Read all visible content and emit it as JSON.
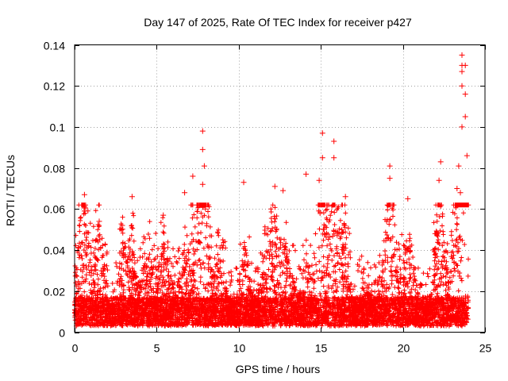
{
  "chart_data": {
    "type": "scatter",
    "title": "Day 147 of 2025, Rate Of TEC Index for receiver p427",
    "xlabel": "GPS time / hours",
    "ylabel": "ROTI / TECUs",
    "xlim": [
      0,
      25
    ],
    "ylim": [
      0,
      0.14
    ],
    "x_ticks": [
      0,
      5,
      10,
      15,
      20,
      25
    ],
    "y_ticks": [
      0,
      0.02,
      0.04,
      0.06,
      0.08,
      0.1,
      0.12,
      0.14
    ],
    "x_tick_labels": [
      "0",
      "5",
      "10",
      "15",
      "20",
      "25"
    ],
    "y_tick_labels": [
      "0",
      "0.02",
      "0.04",
      "0.06",
      "0.08",
      "0.1",
      "0.12",
      "0.14"
    ],
    "grid": true,
    "marker": "+",
    "series": [
      {
        "name": "ROTI",
        "color": "#ff0000",
        "x_range_hours": [
          0,
          24
        ],
        "typical_range": [
          0.003,
          0.035
        ],
        "notable_points": [
          {
            "x": 0.6,
            "y": 0.067
          },
          {
            "x": 0.6,
            "y": 0.059
          },
          {
            "x": 1.5,
            "y": 0.054
          },
          {
            "x": 2.9,
            "y": 0.052
          },
          {
            "x": 3.5,
            "y": 0.066
          },
          {
            "x": 5.4,
            "y": 0.057
          },
          {
            "x": 6.7,
            "y": 0.068
          },
          {
            "x": 7.2,
            "y": 0.076
          },
          {
            "x": 7.8,
            "y": 0.098
          },
          {
            "x": 7.8,
            "y": 0.089
          },
          {
            "x": 7.9,
            "y": 0.081
          },
          {
            "x": 7.8,
            "y": 0.072
          },
          {
            "x": 10.3,
            "y": 0.073
          },
          {
            "x": 12.2,
            "y": 0.071
          },
          {
            "x": 12.7,
            "y": 0.069
          },
          {
            "x": 14.1,
            "y": 0.077
          },
          {
            "x": 14.9,
            "y": 0.074
          },
          {
            "x": 15.1,
            "y": 0.097
          },
          {
            "x": 15.1,
            "y": 0.085
          },
          {
            "x": 15.8,
            "y": 0.093
          },
          {
            "x": 15.8,
            "y": 0.085
          },
          {
            "x": 16.5,
            "y": 0.066
          },
          {
            "x": 19.2,
            "y": 0.081
          },
          {
            "x": 19.2,
            "y": 0.075
          },
          {
            "x": 20.3,
            "y": 0.065
          },
          {
            "x": 22.3,
            "y": 0.083
          },
          {
            "x": 22.2,
            "y": 0.074
          },
          {
            "x": 23.3,
            "y": 0.07
          },
          {
            "x": 23.6,
            "y": 0.135
          },
          {
            "x": 23.6,
            "y": 0.13
          },
          {
            "x": 23.8,
            "y": 0.13
          },
          {
            "x": 23.6,
            "y": 0.127
          },
          {
            "x": 23.6,
            "y": 0.12
          },
          {
            "x": 23.8,
            "y": 0.116
          },
          {
            "x": 23.8,
            "y": 0.105
          },
          {
            "x": 23.6,
            "y": 0.1
          },
          {
            "x": 23.9,
            "y": 0.086
          },
          {
            "x": 23.4,
            "y": 0.081
          },
          {
            "x": 23.5,
            "y": 0.068
          }
        ]
      }
    ]
  }
}
